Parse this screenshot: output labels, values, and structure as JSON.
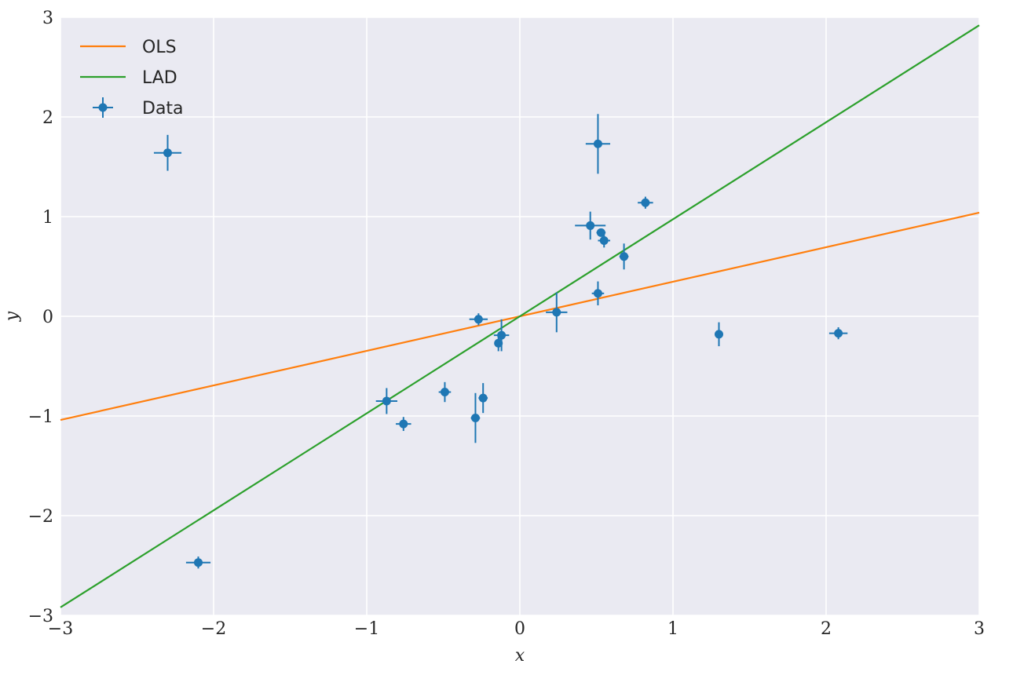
{
  "chart_data": {
    "type": "scatter",
    "xlabel": "x",
    "ylabel": "y",
    "xlim": [
      -3,
      3
    ],
    "ylim": [
      -3,
      3
    ],
    "xticks": [
      -3,
      -2,
      -1,
      0,
      1,
      2,
      3
    ],
    "yticks": [
      -3,
      -2,
      -1,
      0,
      1,
      2,
      3
    ],
    "xtick_labels": [
      "−3",
      "−2",
      "−1",
      "0",
      "1",
      "2",
      "3"
    ],
    "ytick_labels": [
      "−3",
      "−2",
      "−1",
      "0",
      "1",
      "2",
      "3"
    ],
    "grid": true,
    "legend_position": "top-left",
    "colors": {
      "background": "#eaeaf2",
      "grid": "#ffffff",
      "ols": "#ff7f0e",
      "lad": "#2ca02c",
      "data": "#1f77b4"
    },
    "lines": [
      {
        "name": "OLS",
        "x": [
          -3,
          3
        ],
        "y": [
          -1.04,
          1.04
        ]
      },
      {
        "name": "LAD",
        "x": [
          -3,
          3
        ],
        "y": [
          -2.92,
          2.92
        ]
      }
    ],
    "series": [
      {
        "name": "Data",
        "points": [
          {
            "x": -2.3,
            "y": 1.64,
            "xerr": 0.09,
            "yerr": 0.18
          },
          {
            "x": -2.1,
            "y": -2.47,
            "xerr": 0.08,
            "yerr": 0.06
          },
          {
            "x": -0.87,
            "y": -0.85,
            "xerr": 0.07,
            "yerr": 0.13
          },
          {
            "x": -0.76,
            "y": -1.08,
            "xerr": 0.05,
            "yerr": 0.07
          },
          {
            "x": -0.49,
            "y": -0.76,
            "xerr": 0.04,
            "yerr": 0.1
          },
          {
            "x": -0.29,
            "y": -1.02,
            "xerr": 0.03,
            "yerr": 0.25
          },
          {
            "x": -0.27,
            "y": -0.03,
            "xerr": 0.06,
            "yerr": 0.06
          },
          {
            "x": -0.24,
            "y": -0.82,
            "xerr": 0.03,
            "yerr": 0.15
          },
          {
            "x": -0.14,
            "y": -0.27,
            "xerr": 0.02,
            "yerr": 0.08
          },
          {
            "x": -0.12,
            "y": -0.19,
            "xerr": 0.05,
            "yerr": 0.16
          },
          {
            "x": 0.24,
            "y": 0.04,
            "xerr": 0.07,
            "yerr": 0.2
          },
          {
            "x": 0.46,
            "y": 0.91,
            "xerr": 0.1,
            "yerr": 0.14
          },
          {
            "x": 0.51,
            "y": 1.73,
            "xerr": 0.08,
            "yerr": 0.3
          },
          {
            "x": 0.51,
            "y": 0.23,
            "xerr": 0.04,
            "yerr": 0.12
          },
          {
            "x": 0.53,
            "y": 0.84,
            "xerr": 0.03,
            "yerr": 0.04
          },
          {
            "x": 0.55,
            "y": 0.76,
            "xerr": 0.04,
            "yerr": 0.07
          },
          {
            "x": 0.68,
            "y": 0.6,
            "xerr": 0.03,
            "yerr": 0.13
          },
          {
            "x": 0.82,
            "y": 1.14,
            "xerr": 0.05,
            "yerr": 0.06
          },
          {
            "x": 1.3,
            "y": -0.18,
            "xerr": 0.02,
            "yerr": 0.12
          },
          {
            "x": 2.08,
            "y": -0.17,
            "xerr": 0.06,
            "yerr": 0.06
          }
        ]
      }
    ],
    "legend": [
      "OLS",
      "LAD",
      "Data"
    ]
  }
}
